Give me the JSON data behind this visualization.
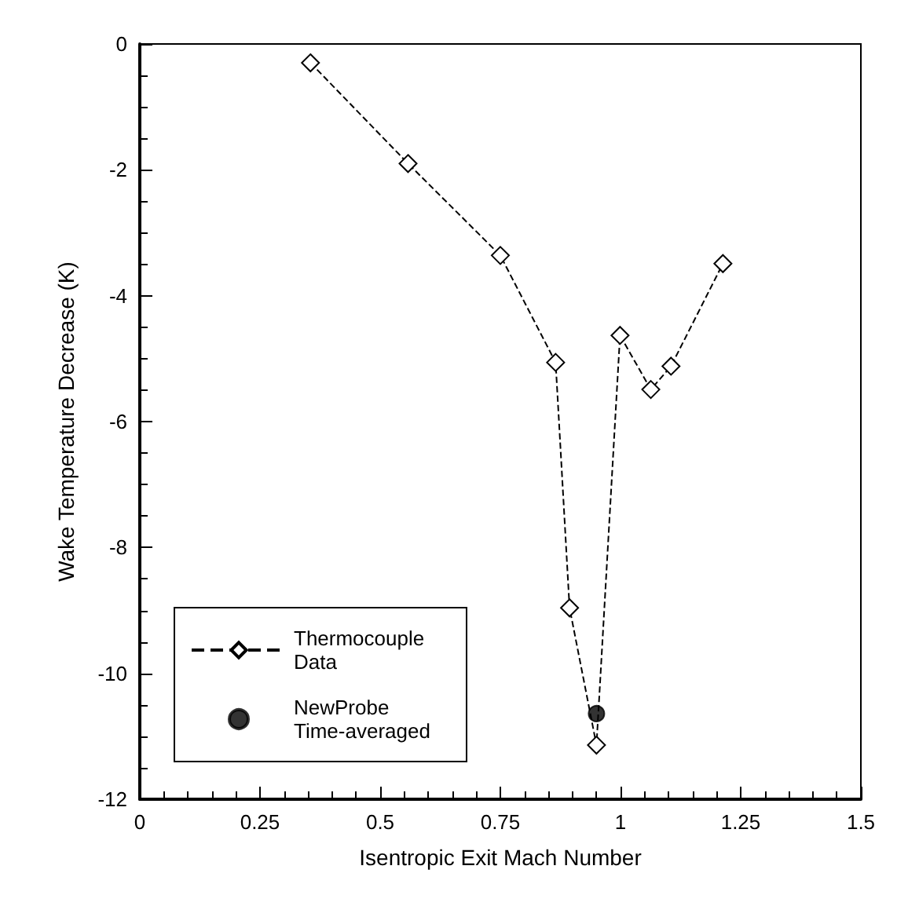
{
  "chart_data": {
    "type": "line",
    "xlabel": "Isentropic Exit Mach Number",
    "ylabel": "Wake Temperature Decrease (K)",
    "series": [
      {
        "name": "Thermocouple Data",
        "color": "#000000",
        "marker": "diamond",
        "line_style": "dashed",
        "x": [
          0.355,
          0.558,
          0.75,
          0.865,
          0.894,
          0.95,
          0.999,
          1.063,
          1.105,
          1.213
        ],
        "values": [
          -0.3,
          -1.9,
          -3.36,
          -5.06,
          -8.96,
          -11.14,
          -4.63,
          -5.49,
          -5.12,
          -3.49
        ]
      },
      {
        "name": "NewProbe Time-averaged",
        "type": "scatter",
        "color": "#000000",
        "marker": "circle",
        "x": [
          0.95
        ],
        "values": [
          -10.64
        ]
      }
    ],
    "xlim": [
      0,
      1.5
    ],
    "xticks": [
      0,
      0.25,
      0.5,
      0.75,
      1,
      1.25,
      1.5
    ],
    "ylim": [
      -12,
      0
    ],
    "yticks": [
      -12,
      -10,
      -8,
      -6,
      -4,
      -2,
      0
    ],
    "grid": false,
    "legend": "bottom left"
  }
}
